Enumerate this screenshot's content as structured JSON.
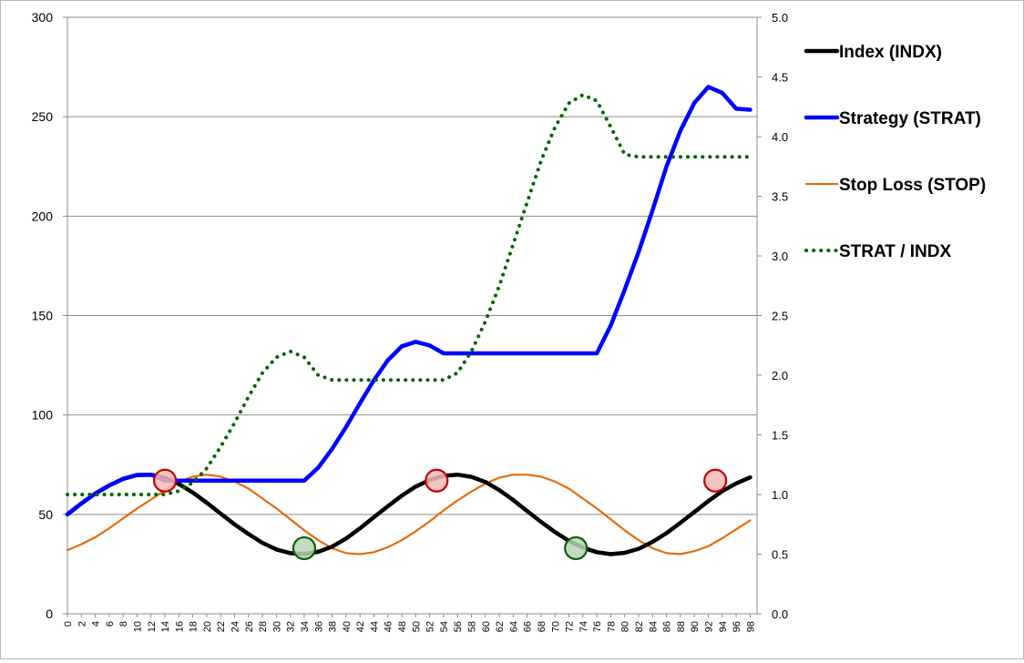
{
  "chart_data": {
    "type": "line",
    "x": [
      0,
      2,
      4,
      6,
      8,
      10,
      12,
      14,
      16,
      18,
      20,
      22,
      24,
      26,
      28,
      30,
      32,
      34,
      36,
      38,
      40,
      42,
      44,
      46,
      48,
      50,
      52,
      54,
      56,
      58,
      60,
      62,
      64,
      66,
      68,
      70,
      72,
      74,
      76,
      78,
      80,
      82,
      84,
      86,
      88,
      90,
      92,
      94,
      96,
      98
    ],
    "ylim": [
      0,
      300
    ],
    "y2lim": [
      0,
      5.0
    ],
    "yticks": [
      "0",
      "50",
      "100",
      "150",
      "200",
      "250",
      "300"
    ],
    "y2ticks": [
      "0.0",
      "0.5",
      "1.0",
      "1.5",
      "2.0",
      "2.5",
      "3.0",
      "3.5",
      "4.0",
      "4.5",
      "5.0"
    ],
    "grid": true,
    "legend_position": "right",
    "series": [
      {
        "name": "Index (INDX)",
        "axis": "left",
        "color": "#000000",
        "style": "solid-thick",
        "values": [
          50,
          55.5,
          60.5,
          64.6,
          67.9,
          69.8,
          70,
          68.4,
          65.3,
          61,
          55.9,
          50.4,
          45,
          40.1,
          35.7,
          32.4,
          30.5,
          30.1,
          31.2,
          33.8,
          37.9,
          43,
          48.6,
          54.1,
          59.4,
          64,
          67.3,
          69.4,
          70,
          68.9,
          66.3,
          62.2,
          57.2,
          51.6,
          46.2,
          41.1,
          36.7,
          33.3,
          31,
          30,
          30.7,
          32.7,
          36.2,
          40.6,
          45.8,
          51.2,
          56.7,
          61.7,
          65.6,
          68.6
        ]
      },
      {
        "name": "Strategy (STRAT)",
        "axis": "left",
        "color": "#0000ff",
        "style": "solid-thick",
        "values": [
          50,
          55.5,
          60.5,
          64.6,
          67.9,
          69.8,
          70,
          67,
          67,
          67,
          67,
          67,
          67,
          67,
          67,
          67,
          67,
          67,
          73.5,
          83,
          94,
          106,
          117.5,
          127.5,
          134.5,
          136.8,
          135,
          131,
          131,
          131,
          131,
          131,
          131,
          131,
          131,
          131,
          131,
          131,
          131,
          145,
          163,
          182,
          203,
          225,
          243,
          257,
          265,
          262,
          254,
          253.5
        ]
      },
      {
        "name": "Stop Loss (STOP)",
        "axis": "left",
        "color": "#e46c0a",
        "style": "solid-thin",
        "values": [
          32,
          35,
          38.5,
          43,
          48,
          53,
          57.5,
          62,
          66.5,
          69,
          70,
          69,
          66.5,
          63,
          58,
          53,
          47.5,
          42,
          37,
          33,
          30.5,
          30,
          31,
          33.5,
          37,
          41.5,
          46.5,
          52,
          57,
          61.5,
          65.5,
          68.5,
          70,
          70,
          69,
          66.5,
          63,
          58,
          53,
          47.5,
          42,
          37,
          33,
          30.5,
          30,
          31.5,
          34,
          38,
          42.5,
          47
        ]
      },
      {
        "name": "STRAT / INDX",
        "axis": "right",
        "color": "#006400",
        "style": "dotted",
        "values": [
          1,
          1,
          1,
          1,
          1,
          1,
          1,
          1,
          1.03,
          1.1,
          1.22,
          1.4,
          1.6,
          1.82,
          2.02,
          2.15,
          2.2,
          2.15,
          2.0,
          1.96,
          1.96,
          1.96,
          1.96,
          1.96,
          1.96,
          1.96,
          1.96,
          1.96,
          2.02,
          2.2,
          2.45,
          2.75,
          3.1,
          3.45,
          3.8,
          4.08,
          4.28,
          4.35,
          4.3,
          4.08,
          3.85,
          3.83,
          3.83,
          3.83,
          3.83,
          3.83,
          3.83,
          3.83,
          3.83,
          3.83
        ]
      }
    ],
    "markers": [
      {
        "type": "sell",
        "x": 14,
        "y": 67,
        "fill": "#f4b8b8",
        "stroke": "#c00000"
      },
      {
        "type": "buy",
        "x": 34,
        "y": 33,
        "fill": "#b9d3b9",
        "stroke": "#006400"
      },
      {
        "type": "sell",
        "x": 53,
        "y": 67,
        "fill": "#f4b8b8",
        "stroke": "#c00000"
      },
      {
        "type": "buy",
        "x": 73,
        "y": 33,
        "fill": "#b9d3b9",
        "stroke": "#006400"
      },
      {
        "type": "sell",
        "x": 93,
        "y": 67,
        "fill": "#f4b8b8",
        "stroke": "#c00000"
      }
    ]
  }
}
